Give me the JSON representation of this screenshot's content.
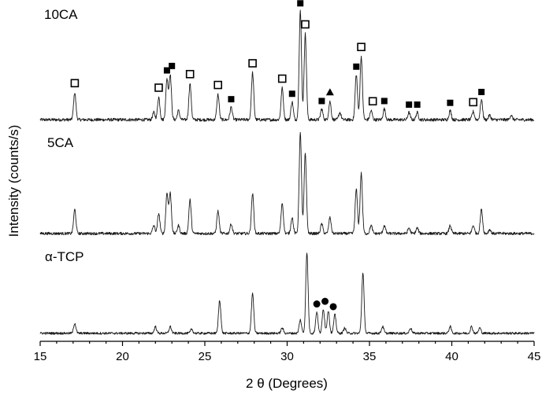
{
  "chart_data": {
    "type": "line",
    "xlabel": "2 θ (Degrees)",
    "ylabel": "Intensity (counts/s)",
    "xlim": [
      15,
      45
    ],
    "xticks": [
      15,
      20,
      25,
      30,
      35,
      40,
      45
    ],
    "grid": false,
    "series": [
      {
        "name": "10CA",
        "baseline": 0.05,
        "peaks": [
          {
            "x": 17.1,
            "h": 0.3
          },
          {
            "x": 21.9,
            "h": 0.08
          },
          {
            "x": 22.2,
            "h": 0.25
          },
          {
            "x": 22.7,
            "h": 0.45
          },
          {
            "x": 22.9,
            "h": 0.5
          },
          {
            "x": 23.4,
            "h": 0.1
          },
          {
            "x": 24.1,
            "h": 0.4
          },
          {
            "x": 25.8,
            "h": 0.28
          },
          {
            "x": 26.6,
            "h": 0.14
          },
          {
            "x": 27.9,
            "h": 0.52
          },
          {
            "x": 29.7,
            "h": 0.35
          },
          {
            "x": 30.3,
            "h": 0.2
          },
          {
            "x": 30.8,
            "h": 1.2
          },
          {
            "x": 31.1,
            "h": 0.95
          },
          {
            "x": 32.1,
            "h": 0.12
          },
          {
            "x": 32.6,
            "h": 0.2
          },
          {
            "x": 33.2,
            "h": 0.08
          },
          {
            "x": 34.2,
            "h": 0.5
          },
          {
            "x": 34.5,
            "h": 0.7
          },
          {
            "x": 35.1,
            "h": 0.1
          },
          {
            "x": 35.9,
            "h": 0.12
          },
          {
            "x": 37.4,
            "h": 0.08
          },
          {
            "x": 37.9,
            "h": 0.08
          },
          {
            "x": 39.9,
            "h": 0.1
          },
          {
            "x": 41.3,
            "h": 0.09
          },
          {
            "x": 41.8,
            "h": 0.22
          },
          {
            "x": 42.3,
            "h": 0.05
          },
          {
            "x": 43.6,
            "h": 0.05
          }
        ]
      },
      {
        "name": "5CA",
        "baseline": 0.05,
        "peaks": [
          {
            "x": 17.1,
            "h": 0.3
          },
          {
            "x": 21.9,
            "h": 0.1
          },
          {
            "x": 22.2,
            "h": 0.25
          },
          {
            "x": 22.7,
            "h": 0.5
          },
          {
            "x": 22.9,
            "h": 0.5
          },
          {
            "x": 23.4,
            "h": 0.1
          },
          {
            "x": 24.1,
            "h": 0.42
          },
          {
            "x": 25.8,
            "h": 0.28
          },
          {
            "x": 26.6,
            "h": 0.12
          },
          {
            "x": 27.9,
            "h": 0.5
          },
          {
            "x": 29.7,
            "h": 0.38
          },
          {
            "x": 30.3,
            "h": 0.2
          },
          {
            "x": 30.8,
            "h": 1.25
          },
          {
            "x": 31.1,
            "h": 1.0
          },
          {
            "x": 32.1,
            "h": 0.12
          },
          {
            "x": 32.6,
            "h": 0.2
          },
          {
            "x": 34.2,
            "h": 0.55
          },
          {
            "x": 34.5,
            "h": 0.75
          },
          {
            "x": 35.1,
            "h": 0.1
          },
          {
            "x": 35.9,
            "h": 0.1
          },
          {
            "x": 37.4,
            "h": 0.07
          },
          {
            "x": 37.9,
            "h": 0.07
          },
          {
            "x": 39.9,
            "h": 0.1
          },
          {
            "x": 41.3,
            "h": 0.1
          },
          {
            "x": 41.8,
            "h": 0.3
          },
          {
            "x": 42.3,
            "h": 0.05
          }
        ]
      },
      {
        "name": "α-TCP",
        "baseline": 0.05,
        "peaks": [
          {
            "x": 17.1,
            "h": 0.15
          },
          {
            "x": 22.0,
            "h": 0.1
          },
          {
            "x": 22.9,
            "h": 0.1
          },
          {
            "x": 24.2,
            "h": 0.06
          },
          {
            "x": 25.9,
            "h": 0.5
          },
          {
            "x": 27.9,
            "h": 0.6
          },
          {
            "x": 29.7,
            "h": 0.08
          },
          {
            "x": 30.8,
            "h": 0.2
          },
          {
            "x": 31.2,
            "h": 1.2
          },
          {
            "x": 31.8,
            "h": 0.32
          },
          {
            "x": 32.2,
            "h": 0.36
          },
          {
            "x": 32.5,
            "h": 0.34
          },
          {
            "x": 32.9,
            "h": 0.28
          },
          {
            "x": 33.5,
            "h": 0.08
          },
          {
            "x": 34.6,
            "h": 0.9
          },
          {
            "x": 35.8,
            "h": 0.1
          },
          {
            "x": 37.5,
            "h": 0.08
          },
          {
            "x": 39.9,
            "h": 0.1
          },
          {
            "x": 41.2,
            "h": 0.1
          },
          {
            "x": 41.7,
            "h": 0.08
          }
        ]
      }
    ],
    "markers": {
      "open_square": [
        17.1,
        22.2,
        24.1,
        25.8,
        27.9,
        29.7,
        31.1,
        34.5,
        35.2,
        41.3
      ],
      "filled_square": [
        22.7,
        23.0,
        26.6,
        30.3,
        30.8,
        32.1,
        34.2,
        35.9,
        37.4,
        37.9,
        39.9,
        41.8
      ],
      "filled_triangle": [
        32.6
      ],
      "filled_circle": [
        31.8,
        32.3,
        32.8
      ]
    }
  }
}
